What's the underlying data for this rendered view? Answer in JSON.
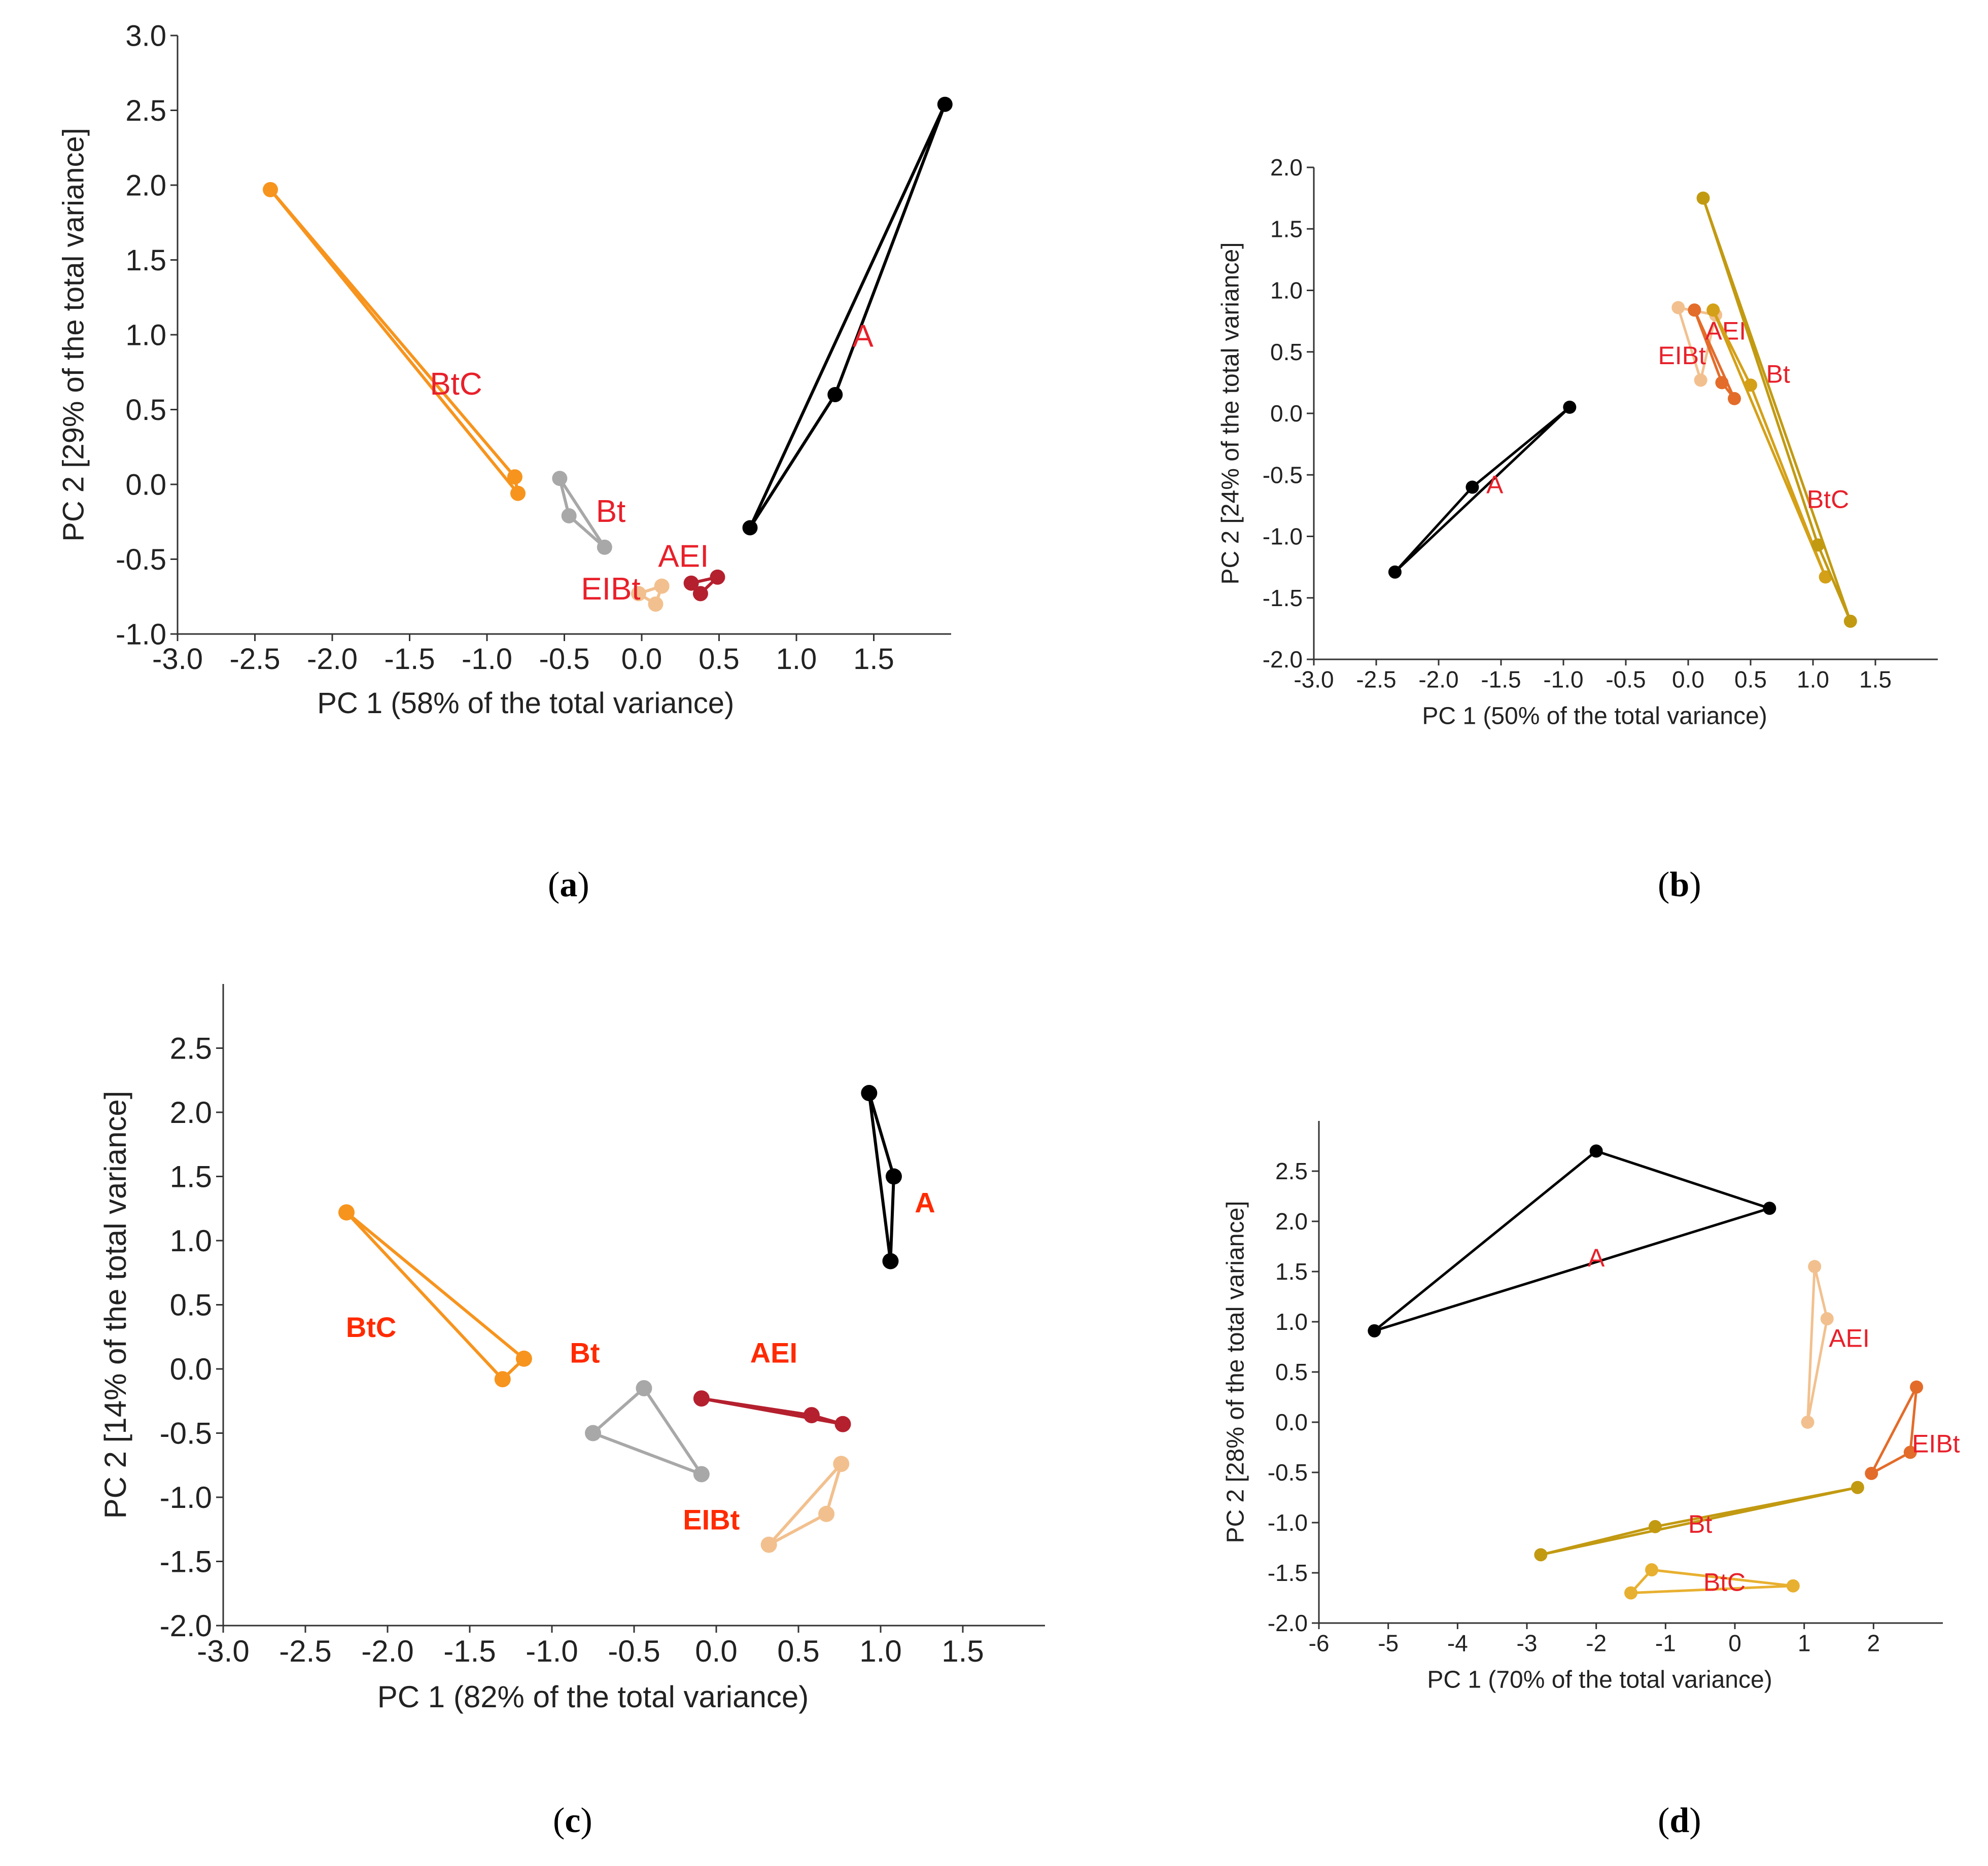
{
  "panels": [
    {
      "id": "a",
      "caption": "a",
      "chart_data": {
        "type": "scatter",
        "xlabel": "PC 1 (58% of the total variance)",
        "ylabel": "PC 2 [29% of the total variance]",
        "xlim": [
          -3.0,
          2.0
        ],
        "ylim": [
          -1.0,
          3.0
        ],
        "x_ticks": [
          "-3.0",
          "-2.5",
          "-2.0",
          "-1.5",
          "-1.0",
          "-0.5",
          "0.0",
          "0.5",
          "1.0",
          "1.5"
        ],
        "y_ticks": [
          "-1.0",
          "-0.5",
          "0.0",
          "0.5",
          "1.0",
          "1.5",
          "2.0",
          "2.5",
          "3.0"
        ],
        "grid": false,
        "series": [
          {
            "name": "BtC",
            "color": "#f7941d",
            "label": {
              "x": -1.2,
              "y": 0.6,
              "bold": false
            },
            "points": [
              [
                -2.4,
                1.97
              ],
              [
                -0.82,
                0.05
              ],
              [
                -0.8,
                -0.06
              ]
            ]
          },
          {
            "name": "Bt",
            "color": "#a8a8a8",
            "label": {
              "x": -0.2,
              "y": -0.25,
              "bold": false
            },
            "points": [
              [
                -0.53,
                0.04
              ],
              [
                -0.47,
                -0.21
              ],
              [
                -0.24,
                -0.42
              ]
            ]
          },
          {
            "name": "AEI",
            "color": "#b5202e",
            "label": {
              "x": 0.27,
              "y": -0.55,
              "bold": false
            },
            "points": [
              [
                0.32,
                -0.66
              ],
              [
                0.38,
                -0.73
              ],
              [
                0.49,
                -0.62
              ]
            ]
          },
          {
            "name": "EIBt",
            "color": "#f2c08e",
            "label": {
              "x": -0.2,
              "y": -0.77,
              "bold": false
            },
            "points": [
              [
                -0.02,
                -0.73
              ],
              [
                0.13,
                -0.68
              ],
              [
                0.09,
                -0.8
              ]
            ]
          },
          {
            "name": "A",
            "color": "#000000",
            "label": {
              "x": 1.43,
              "y": 0.92,
              "bold": false
            },
            "points": [
              [
                0.7,
                -0.29
              ],
              [
                1.25,
                0.6
              ],
              [
                1.96,
                2.54
              ]
            ]
          }
        ]
      }
    },
    {
      "id": "b",
      "caption": "b",
      "chart_data": {
        "type": "scatter",
        "xlabel": "PC 1 (50% of the total variance)",
        "ylabel": "PC 2 [24% of the total variance]",
        "xlim": [
          -3.0,
          2.0
        ],
        "ylim": [
          -2.0,
          2.0
        ],
        "x_ticks": [
          "-3.0",
          "-2.5",
          "-2.0",
          "-1.5",
          "-1.0",
          "-0.5",
          "0.0",
          "0.5",
          "1.0",
          "1.5"
        ],
        "y_ticks": [
          "-2.0",
          "-1.5",
          "-1.0",
          "-0.5",
          "0.0",
          "0.5",
          "1.0",
          "1.5",
          "2.0"
        ],
        "grid": false,
        "series": [
          {
            "name": "A",
            "color": "#000000",
            "label": {
              "x": -1.55,
              "y": -0.65,
              "bold": false
            },
            "points": [
              [
                -2.35,
                -1.29
              ],
              [
                -1.73,
                -0.6
              ],
              [
                -0.95,
                0.05
              ]
            ]
          },
          {
            "name": "EIBt",
            "color": "#f2c08e",
            "label": {
              "x": -0.05,
              "y": 0.4,
              "bold": false
            },
            "points": [
              [
                -0.08,
                0.86
              ],
              [
                0.1,
                0.27
              ],
              [
                0.22,
                0.8
              ]
            ]
          },
          {
            "name": "AEI",
            "color": "#e36c2a",
            "label": {
              "x": 0.3,
              "y": 0.6,
              "bold": false
            },
            "points": [
              [
                0.05,
                0.84
              ],
              [
                0.27,
                0.25
              ],
              [
                0.37,
                0.12
              ]
            ]
          },
          {
            "name": "Bt",
            "color": "#d4a017",
            "label": {
              "x": 0.72,
              "y": 0.25,
              "bold": false
            },
            "points": [
              [
                0.2,
                0.84
              ],
              [
                0.5,
                0.23
              ],
              [
                1.1,
                -1.33
              ]
            ]
          },
          {
            "name": "BtC",
            "color": "#c29a12",
            "label": {
              "x": 1.12,
              "y": -0.77,
              "bold": false
            },
            "points": [
              [
                0.12,
                1.75
              ],
              [
                1.04,
                -1.07
              ],
              [
                1.3,
                -1.69
              ]
            ]
          }
        ]
      }
    },
    {
      "id": "c",
      "caption": "c",
      "chart_data": {
        "type": "scatter",
        "xlabel": "PC 1  (82% of the total variance)",
        "ylabel": "PC 2 [14% of the total variance]",
        "xlim": [
          -3.0,
          2.0
        ],
        "ylim": [
          -2.0,
          3.0
        ],
        "x_ticks": [
          "-3.0",
          "-2.5",
          "-2.0",
          "-1.5",
          "-1.0",
          "-0.5",
          "0.0",
          "0.5",
          "1.0",
          "1.5"
        ],
        "y_ticks": [
          "-2.0",
          "-1.5",
          "-1.0",
          "-0.5",
          "0.0",
          "0.5",
          "1.0",
          "1.5",
          "2.0",
          "2.5"
        ],
        "grid": false,
        "series": [
          {
            "name": "BtC",
            "color": "#f7941d",
            "label": {
              "x": -2.1,
              "y": 0.25,
              "bold": true
            },
            "points": [
              [
                -2.25,
                1.22
              ],
              [
                -1.3,
                -0.08
              ],
              [
                -1.17,
                0.08
              ]
            ]
          },
          {
            "name": "Bt",
            "color": "#a8a8a8",
            "label": {
              "x": -0.8,
              "y": 0.05,
              "bold": true
            },
            "points": [
              [
                -0.75,
                -0.5
              ],
              [
                -0.44,
                -0.15
              ],
              [
                -0.09,
                -0.82
              ]
            ]
          },
          {
            "name": "AEI",
            "color": "#b5202e",
            "label": {
              "x": 0.35,
              "y": 0.05,
              "bold": true
            },
            "points": [
              [
                -0.09,
                -0.23
              ],
              [
                0.58,
                -0.36
              ],
              [
                0.77,
                -0.43
              ]
            ]
          },
          {
            "name": "EIBt",
            "color": "#f2c08e",
            "label": {
              "x": -0.03,
              "y": -1.25,
              "bold": true
            },
            "points": [
              [
                0.32,
                -1.37
              ],
              [
                0.67,
                -1.13
              ],
              [
                0.76,
                -0.74
              ]
            ]
          },
          {
            "name": "A",
            "color": "#000000",
            "label": {
              "x": 1.27,
              "y": 1.22,
              "bold": true
            },
            "points": [
              [
                0.93,
                2.15
              ],
              [
                1.08,
                1.5
              ],
              [
                1.06,
                0.84
              ]
            ]
          }
        ]
      }
    },
    {
      "id": "d",
      "caption": "d",
      "chart_data": {
        "type": "scatter",
        "xlabel": "PC 1 (70% of the total variance)",
        "ylabel": "PC 2 [28% of the total variance]",
        "xlim": [
          -6,
          3
        ],
        "ylim": [
          -2.0,
          3.0
        ],
        "x_ticks": [
          "-6",
          "-5",
          "-4",
          "-3",
          "-2",
          "-1",
          "0",
          "1",
          "2"
        ],
        "y_ticks": [
          "-2.0",
          "-1.5",
          "-1.0",
          "-0.5",
          "0.0",
          "0.5",
          "1.0",
          "1.5",
          "2.0",
          "2.5"
        ],
        "grid": false,
        "series": [
          {
            "name": "A",
            "color": "#000000",
            "label": {
              "x": -2.0,
              "y": 1.55,
              "bold": false
            },
            "points": [
              [
                -5.2,
                0.91
              ],
              [
                -2.0,
                2.7
              ],
              [
                0.5,
                2.13
              ]
            ]
          },
          {
            "name": "AEI",
            "color": "#f2c08e",
            "label": {
              "x": 1.65,
              "y": 0.75,
              "bold": false
            },
            "points": [
              [
                1.05,
                0.0
              ],
              [
                1.15,
                1.55
              ],
              [
                1.33,
                1.03
              ]
            ]
          },
          {
            "name": "EIBt",
            "color": "#e36c2a",
            "label": {
              "x": 2.9,
              "y": -0.3,
              "bold": false
            },
            "points": [
              [
                1.97,
                -0.51
              ],
              [
                2.53,
                -0.3
              ],
              [
                2.62,
                0.35
              ]
            ]
          },
          {
            "name": "Bt",
            "color": "#c29a12",
            "label": {
              "x": -0.5,
              "y": -1.1,
              "bold": false
            },
            "points": [
              [
                -2.8,
                -1.32
              ],
              [
                -1.15,
                -1.04
              ],
              [
                1.77,
                -0.65
              ]
            ]
          },
          {
            "name": "BtC",
            "color": "#e8b030",
            "label": {
              "x": -0.15,
              "y": -1.68,
              "bold": false
            },
            "points": [
              [
                -1.5,
                -1.7
              ],
              [
                -1.2,
                -1.47
              ],
              [
                0.84,
                -1.63
              ]
            ]
          }
        ]
      }
    }
  ]
}
